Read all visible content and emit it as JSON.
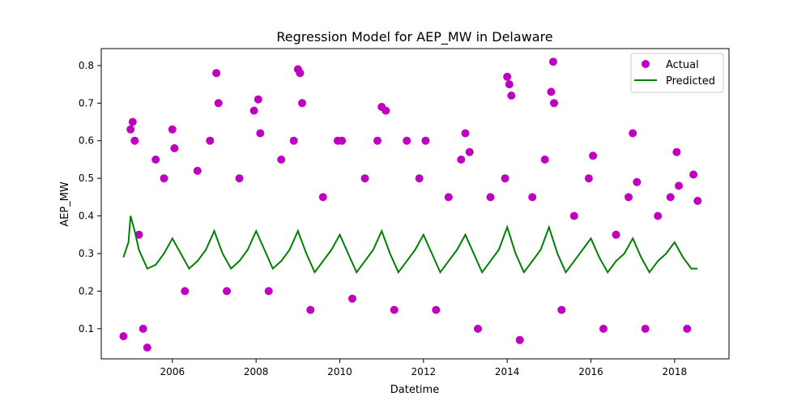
{
  "chart_data": {
    "type": "scatter",
    "title": "Regression Model for AEP_MW in Delaware",
    "xlabel": "Datetime",
    "ylabel": "AEP_MW",
    "xlim": [
      2004.3,
      2019.3
    ],
    "ylim": [
      0.02,
      0.845
    ],
    "x_ticks": [
      "2006",
      "2008",
      "2010",
      "2012",
      "2014",
      "2016",
      "2018"
    ],
    "y_ticks": [
      "0.1",
      "0.2",
      "0.3",
      "0.4",
      "0.5",
      "0.6",
      "0.7",
      "0.8"
    ],
    "legend": {
      "position": "top-right",
      "entries": [
        "Actual",
        "Predicted"
      ]
    },
    "grid": false,
    "series": [
      {
        "name": "Actual",
        "kind": "scatter",
        "color": "#BF00BF",
        "x": [
          2004.83,
          2005.0,
          2005.05,
          2005.1,
          2005.2,
          2005.3,
          2005.4,
          2005.6,
          2005.8,
          2006.0,
          2006.05,
          2006.3,
          2006.6,
          2006.9,
          2007.05,
          2007.1,
          2007.3,
          2007.6,
          2007.95,
          2008.05,
          2008.1,
          2008.3,
          2008.6,
          2008.9,
          2009.0,
          2009.05,
          2009.1,
          2009.3,
          2009.6,
          2009.95,
          2010.05,
          2010.3,
          2010.6,
          2010.9,
          2011.0,
          2011.1,
          2011.3,
          2011.6,
          2011.9,
          2012.05,
          2012.3,
          2012.6,
          2012.9,
          2013.0,
          2013.1,
          2013.3,
          2013.6,
          2013.95,
          2014.0,
          2014.05,
          2014.1,
          2014.3,
          2014.6,
          2014.9,
          2015.05,
          2015.1,
          2015.12,
          2015.3,
          2015.6,
          2015.95,
          2016.05,
          2016.3,
          2016.6,
          2016.9,
          2017.0,
          2017.1,
          2017.3,
          2017.6,
          2017.9,
          2018.05,
          2018.1,
          2018.3,
          2018.45,
          2018.55
        ],
        "y": [
          0.08,
          0.63,
          0.65,
          0.6,
          0.35,
          0.1,
          0.05,
          0.55,
          0.5,
          0.63,
          0.58,
          0.2,
          0.52,
          0.6,
          0.78,
          0.7,
          0.2,
          0.5,
          0.68,
          0.71,
          0.62,
          0.2,
          0.55,
          0.6,
          0.79,
          0.78,
          0.7,
          0.15,
          0.45,
          0.6,
          0.6,
          0.18,
          0.5,
          0.6,
          0.69,
          0.68,
          0.15,
          0.6,
          0.5,
          0.6,
          0.15,
          0.45,
          0.55,
          0.62,
          0.57,
          0.1,
          0.45,
          0.5,
          0.77,
          0.75,
          0.72,
          0.07,
          0.45,
          0.55,
          0.73,
          0.81,
          0.7,
          0.15,
          0.4,
          0.5,
          0.56,
          0.1,
          0.35,
          0.45,
          0.62,
          0.49,
          0.1,
          0.4,
          0.45,
          0.57,
          0.48,
          0.1,
          0.51,
          0.44
        ]
      },
      {
        "name": "Predicted",
        "kind": "line",
        "color": "#008000",
        "x": [
          2004.83,
          2004.95,
          2005.0,
          2005.1,
          2005.2,
          2005.4,
          2005.6,
          2005.8,
          2006.0,
          2006.2,
          2006.4,
          2006.6,
          2006.8,
          2007.0,
          2007.2,
          2007.4,
          2007.6,
          2007.8,
          2008.0,
          2008.2,
          2008.4,
          2008.6,
          2008.8,
          2009.0,
          2009.2,
          2009.4,
          2009.6,
          2009.8,
          2010.0,
          2010.2,
          2010.4,
          2010.6,
          2010.8,
          2011.0,
          2011.2,
          2011.4,
          2011.6,
          2011.8,
          2012.0,
          2012.2,
          2012.4,
          2012.6,
          2012.8,
          2013.0,
          2013.2,
          2013.4,
          2013.6,
          2013.8,
          2014.0,
          2014.2,
          2014.4,
          2014.6,
          2014.8,
          2015.0,
          2015.2,
          2015.4,
          2015.6,
          2015.8,
          2016.0,
          2016.2,
          2016.4,
          2016.6,
          2016.8,
          2017.0,
          2017.2,
          2017.4,
          2017.6,
          2017.8,
          2018.0,
          2018.2,
          2018.4,
          2018.55
        ],
        "y": [
          0.29,
          0.33,
          0.4,
          0.36,
          0.31,
          0.26,
          0.27,
          0.3,
          0.34,
          0.3,
          0.26,
          0.28,
          0.31,
          0.36,
          0.3,
          0.26,
          0.28,
          0.31,
          0.36,
          0.31,
          0.26,
          0.28,
          0.31,
          0.36,
          0.3,
          0.25,
          0.28,
          0.31,
          0.35,
          0.3,
          0.25,
          0.28,
          0.31,
          0.36,
          0.3,
          0.25,
          0.28,
          0.31,
          0.35,
          0.3,
          0.25,
          0.28,
          0.31,
          0.35,
          0.3,
          0.25,
          0.28,
          0.31,
          0.37,
          0.3,
          0.25,
          0.28,
          0.31,
          0.37,
          0.3,
          0.25,
          0.28,
          0.31,
          0.34,
          0.29,
          0.25,
          0.28,
          0.3,
          0.34,
          0.29,
          0.25,
          0.28,
          0.3,
          0.33,
          0.29,
          0.26,
          0.26
        ]
      }
    ]
  }
}
